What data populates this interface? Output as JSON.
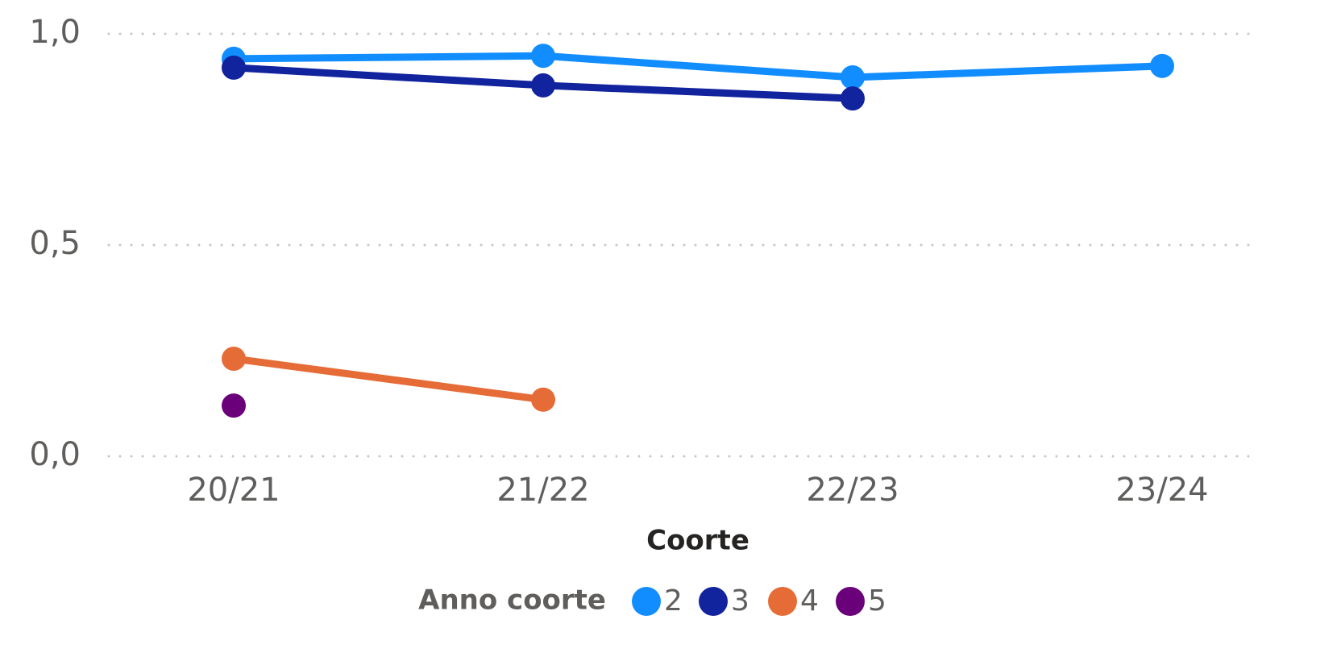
{
  "chart_data": {
    "type": "line",
    "x_label": "Coorte",
    "legend_title": "Anno coorte",
    "categories": [
      "20/21",
      "21/22",
      "22/23",
      "23/24"
    ],
    "series": [
      {
        "name": "2",
        "color": "#118DFF",
        "values": [
          0.941,
          0.948,
          0.897,
          0.924
        ]
      },
      {
        "name": "3",
        "color": "#12239E",
        "values": [
          0.92,
          0.878,
          0.847,
          null
        ]
      },
      {
        "name": "4",
        "color": "#E66C37",
        "values": [
          0.231,
          0.134,
          null,
          null
        ]
      },
      {
        "name": "5",
        "color": "#6B007B",
        "values": [
          0.12,
          null,
          null,
          null
        ]
      }
    ],
    "ylim": [
      0,
      1
    ],
    "yticks": [
      {
        "value": 0,
        "label": "0,0"
      },
      {
        "value": 0.5,
        "label": "0,5"
      },
      {
        "value": 1,
        "label": "1,0"
      }
    ],
    "grid": true,
    "legend": "bottom"
  }
}
